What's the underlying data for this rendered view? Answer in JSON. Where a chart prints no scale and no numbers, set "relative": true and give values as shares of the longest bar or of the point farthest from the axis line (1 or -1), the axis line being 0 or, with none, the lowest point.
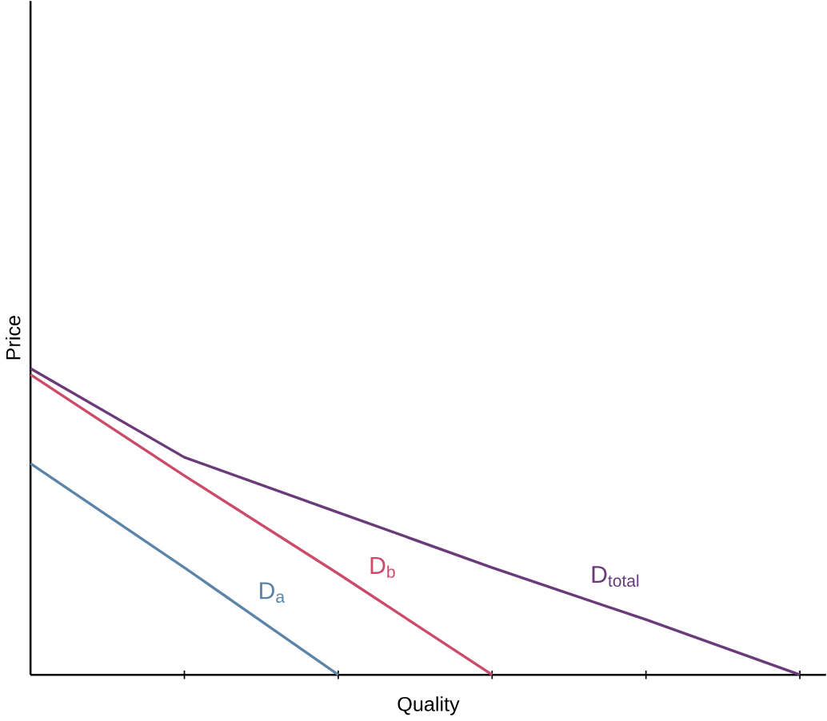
{
  "chart_data": {
    "type": "line",
    "relative": true,
    "xlabel": "Quality",
    "ylabel": "Price",
    "categories": [
      null,
      null,
      null,
      null,
      null,
      null
    ],
    "legend": false,
    "marker": "none",
    "line_style": "solid",
    "tick_labels": false,
    "series": [
      {
        "name": "D$_{a}$",
        "color": "#5b84a8",
        "values": [
          0.69,
          0.35,
          0,
          null,
          null,
          null
        ]
      },
      {
        "name": "D$_{b}$",
        "color": "#cc4a6a",
        "values": [
          0.98,
          0.65,
          0.33,
          0,
          null,
          null
        ]
      },
      {
        "name": "D$_{total}$",
        "color": "#6b3a7a",
        "values": [
          1,
          0.71,
          0.53,
          0.35,
          0.18,
          0
        ]
      }
    ]
  }
}
